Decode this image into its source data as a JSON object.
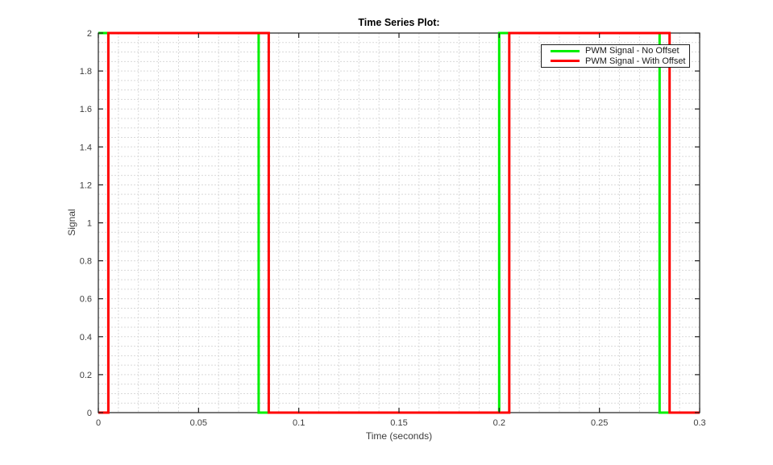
{
  "chart_data": {
    "type": "line",
    "subtype": "step-square-wave",
    "title": "Time Series Plot:",
    "xlabel": "Time (seconds)",
    "ylabel": "Signal",
    "xlim": [
      0,
      0.3
    ],
    "ylim": [
      0,
      2
    ],
    "xtick_values": [
      0,
      0.05,
      0.1,
      0.15,
      0.2,
      0.25,
      0.3
    ],
    "xtick_labels": [
      "0",
      "0.05",
      "0.1",
      "0.15",
      "0.2",
      "0.25",
      "0.3"
    ],
    "ytick_values": [
      0,
      0.2,
      0.4,
      0.6,
      0.8,
      1,
      1.2,
      1.4,
      1.6,
      1.8,
      2
    ],
    "ytick_labels": [
      "0",
      "0.2",
      "0.4",
      "0.6",
      "0.8",
      "1",
      "1.2",
      "1.4",
      "1.6",
      "1.8",
      "2"
    ],
    "x_minor_grid_step": 0.01,
    "y_minor_grid_step": 0.05,
    "grid": "minor-dotted-on",
    "grid_color": "#d9d9d9",
    "axes_color": "#1f1f1f",
    "legend_position": "top-right",
    "series": [
      {
        "name": "PWM Signal - No Offset",
        "color": "#00f000",
        "line_width": 3,
        "x": [
          0,
          0.08,
          0.08,
          0.2,
          0.2,
          0.28,
          0.28,
          0.3
        ],
        "y": [
          2,
          2,
          0,
          0,
          2,
          2,
          0,
          0
        ]
      },
      {
        "name": "PWM Signal - With Offset",
        "color": "#ff0000",
        "line_width": 3,
        "x": [
          0,
          0.005,
          0.005,
          0.085,
          0.085,
          0.205,
          0.205,
          0.285,
          0.285,
          0.3
        ],
        "y": [
          0,
          0,
          2,
          2,
          0,
          0,
          2,
          2,
          0,
          0
        ]
      }
    ]
  }
}
